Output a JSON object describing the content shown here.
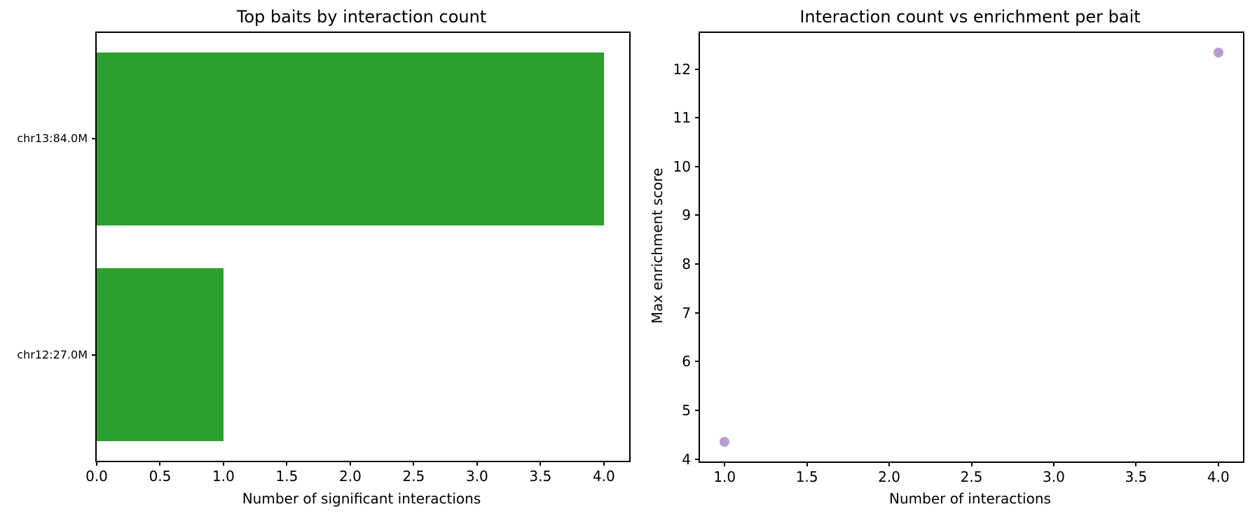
{
  "figure": {
    "background": "#ffffff"
  },
  "chart_data": [
    {
      "type": "bar",
      "orientation": "horizontal",
      "title": "Top baits by interaction count",
      "xlabel": "Number of significant interactions",
      "ylabel": "",
      "categories": [
        "chr13:84.0M",
        "chr12:27.0M"
      ],
      "values": [
        4,
        1
      ],
      "bar_color": "#2ca02c",
      "bar_height_frac": 0.8,
      "xlim": [
        0,
        4.2
      ],
      "ylim": [
        -0.49,
        1.49
      ],
      "category_centers": [
        1,
        0
      ],
      "grid": false,
      "xticks": [
        {
          "v": 0.0,
          "label": "0.0"
        },
        {
          "v": 0.5,
          "label": "0.5"
        },
        {
          "v": 1.0,
          "label": "1.0"
        },
        {
          "v": 1.5,
          "label": "1.5"
        },
        {
          "v": 2.0,
          "label": "2.0"
        },
        {
          "v": 2.5,
          "label": "2.5"
        },
        {
          "v": 3.0,
          "label": "3.0"
        },
        {
          "v": 3.5,
          "label": "3.5"
        },
        {
          "v": 4.0,
          "label": "4.0"
        }
      ]
    },
    {
      "type": "scatter",
      "title": "Interaction count vs enrichment per bait",
      "xlabel": "Number of interactions",
      "ylabel": "Max enrichment score",
      "points": [
        {
          "x": 1.0,
          "y": 4.35
        },
        {
          "x": 4.0,
          "y": 12.34
        }
      ],
      "point_color": "rgba(148,103,189,0.65)",
      "xlim": [
        0.85,
        4.15
      ],
      "ylim": [
        3.95,
        12.74
      ],
      "grid": false,
      "xticks": [
        {
          "v": 1.0,
          "label": "1.0"
        },
        {
          "v": 1.5,
          "label": "1.5"
        },
        {
          "v": 2.0,
          "label": "2.0"
        },
        {
          "v": 2.5,
          "label": "2.5"
        },
        {
          "v": 3.0,
          "label": "3.0"
        },
        {
          "v": 3.5,
          "label": "3.5"
        },
        {
          "v": 4.0,
          "label": "4.0"
        }
      ],
      "yticks": [
        {
          "v": 4,
          "label": "4"
        },
        {
          "v": 5,
          "label": "5"
        },
        {
          "v": 6,
          "label": "6"
        },
        {
          "v": 7,
          "label": "7"
        },
        {
          "v": 8,
          "label": "8"
        },
        {
          "v": 9,
          "label": "9"
        },
        {
          "v": 10,
          "label": "10"
        },
        {
          "v": 11,
          "label": "11"
        },
        {
          "v": 12,
          "label": "12"
        }
      ]
    }
  ]
}
